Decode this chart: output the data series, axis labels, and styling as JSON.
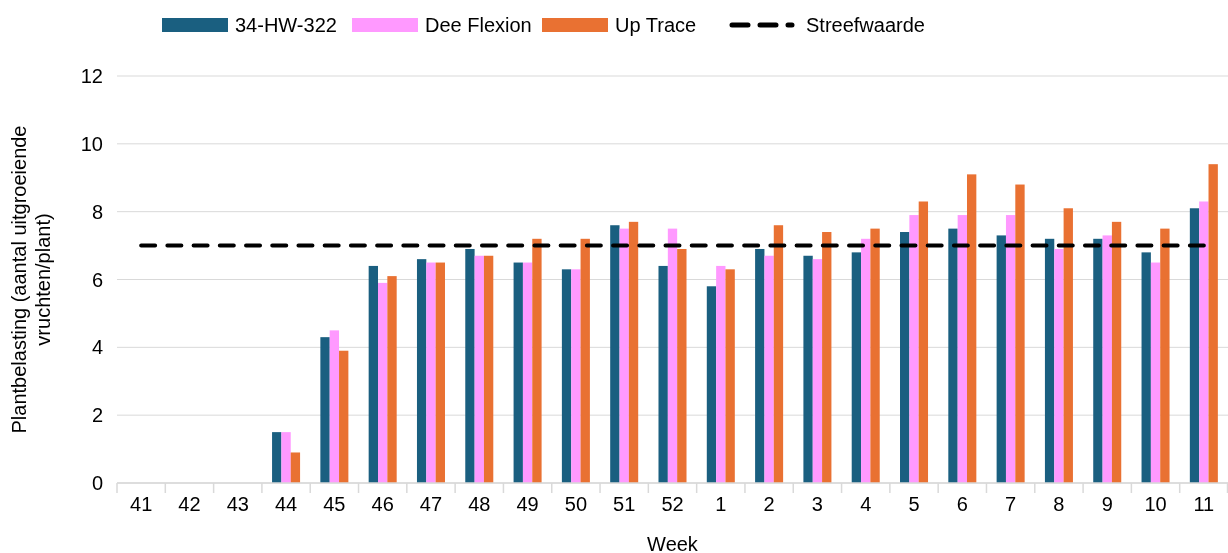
{
  "chart_data": {
    "type": "bar",
    "xlabel": "Week",
    "ylabel": "Plantbelasting (aantal uitgroeiende vruchten/plant)",
    "categories": [
      "41",
      "42",
      "43",
      "44",
      "45",
      "46",
      "47",
      "48",
      "49",
      "50",
      "51",
      "52",
      "1",
      "2",
      "3",
      "4",
      "5",
      "6",
      "7",
      "8",
      "9",
      "10",
      "11"
    ],
    "series": [
      {
        "name": "34-HW-322",
        "color": "#1a5f80",
        "values": [
          null,
          null,
          null,
          1.5,
          4.3,
          6.4,
          6.6,
          6.9,
          6.5,
          6.3,
          7.6,
          6.4,
          5.8,
          6.9,
          6.7,
          6.8,
          7.4,
          7.5,
          7.3,
          7.2,
          7.2,
          6.8,
          8.1
        ]
      },
      {
        "name": "Dee Flexion",
        "color": "#ff99ff",
        "values": [
          null,
          null,
          null,
          1.5,
          4.5,
          5.9,
          6.5,
          6.7,
          6.5,
          6.3,
          7.5,
          7.5,
          6.4,
          6.7,
          6.6,
          7.2,
          7.9,
          7.9,
          7.9,
          6.9,
          7.3,
          6.5,
          8.3
        ]
      },
      {
        "name": "Up Trace",
        "color": "#e97132",
        "values": [
          null,
          null,
          null,
          0.9,
          3.9,
          6.1,
          6.5,
          6.7,
          7.2,
          7.2,
          7.7,
          6.9,
          6.3,
          7.6,
          7.4,
          7.5,
          8.3,
          9.1,
          8.8,
          8.1,
          7.7,
          7.5,
          9.4
        ]
      },
      {
        "name": "Streefwaarde",
        "type": "line",
        "color": "#000000",
        "line_style": "dashed",
        "marker": "none",
        "values": [
          7,
          7,
          7,
          7,
          7,
          7,
          7,
          7,
          7,
          7,
          7,
          7,
          7,
          7,
          7,
          7,
          7,
          7,
          7,
          7,
          7,
          7,
          7
        ]
      }
    ],
    "ylim": [
      0,
      12
    ],
    "yticks": [
      0,
      2,
      4,
      6,
      8,
      10,
      12
    ],
    "grid": "y",
    "legend": "top"
  }
}
